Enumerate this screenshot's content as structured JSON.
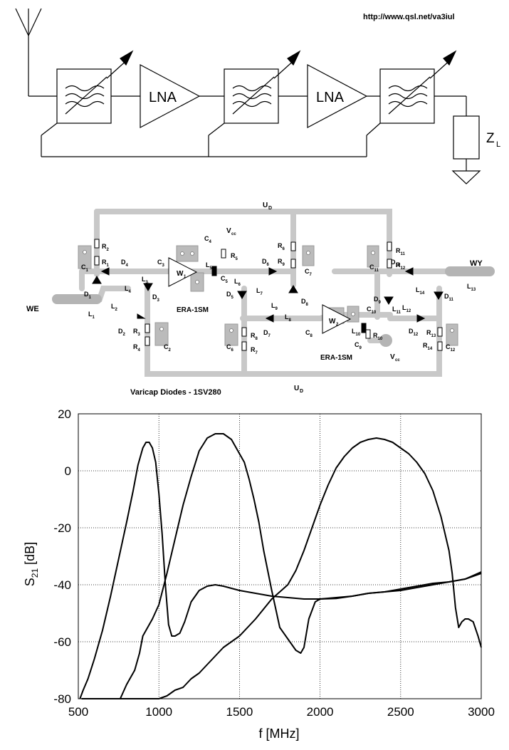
{
  "url": "http://www.qsl.net/va3iul",
  "block": {
    "lna1": "LNA",
    "lna2": "LNA",
    "load_main": "Z",
    "load_sub": "L"
  },
  "schematic": {
    "ud_top": "U",
    "ud_top_sub": "D",
    "ud_bottom": "U",
    "ud_bottom_sub": "D",
    "we": "WE",
    "wy": "WY",
    "amp1_model": "ERA-1SM",
    "amp2_model": "ERA-1SM",
    "amp1": "W",
    "amp1_sub": "1",
    "amp2": "W",
    "amp2_sub": "2",
    "vcc1": "V",
    "vcc1_sub": "cc",
    "vcc2": "V",
    "vcc2_sub": "cc",
    "varicap_note": "Varicap Diodes - 1SV280",
    "components": [
      {
        "t": "R",
        "s": "2"
      },
      {
        "t": "R",
        "s": "1"
      },
      {
        "t": "C",
        "s": "1"
      },
      {
        "t": "D",
        "s": "4"
      },
      {
        "t": "C",
        "s": "3"
      },
      {
        "t": "D",
        "s": "1"
      },
      {
        "t": "L",
        "s": "4"
      },
      {
        "t": "L",
        "s": "3"
      },
      {
        "t": "D",
        "s": "3"
      },
      {
        "t": "L",
        "s": "2"
      },
      {
        "t": "L",
        "s": "1"
      },
      {
        "t": "D",
        "s": "2"
      },
      {
        "t": "R",
        "s": "3"
      },
      {
        "t": "R",
        "s": "4"
      },
      {
        "t": "C",
        "s": "2"
      },
      {
        "t": "C",
        "s": "4"
      },
      {
        "t": "R",
        "s": "5"
      },
      {
        "t": "L",
        "s": "5"
      },
      {
        "t": "C",
        "s": "5"
      },
      {
        "t": "L",
        "s": "6"
      },
      {
        "t": "D",
        "s": "5"
      },
      {
        "t": "L",
        "s": "7"
      },
      {
        "t": "D",
        "s": "6"
      },
      {
        "t": "R",
        "s": "6"
      },
      {
        "t": "R",
        "s": "9"
      },
      {
        "t": "C",
        "s": "7"
      },
      {
        "t": "D",
        "s": "8"
      },
      {
        "t": "L",
        "s": "9"
      },
      {
        "t": "L",
        "s": "8"
      },
      {
        "t": "D",
        "s": "7"
      },
      {
        "t": "R",
        "s": "8"
      },
      {
        "t": "C",
        "s": "6"
      },
      {
        "t": "R",
        "s": "7"
      },
      {
        "t": "C",
        "s": "8"
      },
      {
        "t": "C",
        "s": "10"
      },
      {
        "t": "L",
        "s": "10"
      },
      {
        "t": "R",
        "s": "10"
      },
      {
        "t": "C",
        "s": "9"
      },
      {
        "t": "R",
        "s": "11"
      },
      {
        "t": "C",
        "s": "11"
      },
      {
        "t": "R",
        "s": "12"
      },
      {
        "t": "D",
        "s": "10"
      },
      {
        "t": "D",
        "s": "9"
      },
      {
        "t": "L",
        "s": "11"
      },
      {
        "t": "L",
        "s": "12"
      },
      {
        "t": "L",
        "s": "14"
      },
      {
        "t": "L",
        "s": "13"
      },
      {
        "t": "D",
        "s": "11"
      },
      {
        "t": "D",
        "s": "12"
      },
      {
        "t": "R",
        "s": "13"
      },
      {
        "t": "R",
        "s": "14"
      },
      {
        "t": "C",
        "s": "12"
      }
    ]
  },
  "chart_data": {
    "type": "line",
    "xlabel": "f [MHz]",
    "ylabel": "S",
    "ylabel_sub": "21",
    "ylabel_unit": " [dB]",
    "xlim": [
      500,
      3000
    ],
    "ylim": [
      -80,
      20
    ],
    "xticks": [
      500,
      1000,
      1500,
      2000,
      2500,
      3000
    ],
    "yticks": [
      20,
      0,
      -20,
      -40,
      -60,
      -80
    ],
    "grid": true,
    "series": [
      {
        "x": [
          510,
          530,
          560,
          600,
          650,
          700,
          750,
          800,
          840,
          870,
          900,
          920,
          940,
          960,
          980,
          1000,
          1020,
          1040,
          1060,
          1080,
          1100,
          1130,
          1160,
          1200,
          1250,
          1300,
          1350,
          1400,
          1500,
          1600,
          1700,
          1800,
          1900,
          2000,
          2100,
          2200,
          2300,
          2400,
          2500,
          2600,
          2700,
          2800,
          2900,
          3000
        ],
        "y": [
          -80,
          -77,
          -73,
          -66,
          -56,
          -44,
          -31,
          -18,
          -7,
          2,
          8,
          10,
          10,
          8,
          3,
          -8,
          -22,
          -40,
          -54,
          -58,
          -58,
          -57,
          -53,
          -46,
          -42,
          -40.5,
          -40,
          -40.5,
          -42,
          -43,
          -44,
          -44.5,
          -45,
          -45,
          -44.8,
          -44,
          -43,
          -42.5,
          -41.5,
          -40.5,
          -39.5,
          -39,
          -38,
          -36
        ]
      },
      {
        "x": [
          520,
          600,
          700,
          760,
          800,
          850,
          880,
          900,
          960,
          1000,
          1050,
          1100,
          1150,
          1200,
          1250,
          1300,
          1350,
          1400,
          1450,
          1500,
          1530,
          1560,
          1590,
          1620,
          1650,
          1700,
          1750,
          1800,
          1850,
          1880,
          1900,
          1930,
          1970,
          2000,
          2100,
          2200,
          2300,
          2400,
          2500,
          2600,
          2700,
          2800,
          2900,
          3000
        ],
        "y": [
          -80,
          -80,
          -80,
          -80,
          -75,
          -70,
          -64,
          -58,
          -52,
          -47,
          -36,
          -24,
          -12,
          -2,
          7,
          11.5,
          13,
          13,
          11,
          6,
          3,
          -3,
          -10,
          -18,
          -28,
          -42,
          -55,
          -59,
          -63,
          -64,
          -62,
          -52,
          -46,
          -45,
          -44.5,
          -44,
          -43,
          -42.5,
          -42,
          -41,
          -40,
          -39,
          -38,
          -35.5
        ]
      },
      {
        "x": [
          520,
          800,
          900,
          1000,
          1050,
          1100,
          1150,
          1200,
          1250,
          1300,
          1400,
          1500,
          1600,
          1700,
          1800,
          1850,
          1900,
          1950,
          2000,
          2050,
          2100,
          2150,
          2200,
          2250,
          2300,
          2350,
          2400,
          2450,
          2500,
          2550,
          2600,
          2650,
          2700,
          2750,
          2800,
          2820,
          2840,
          2860,
          2880,
          2900,
          2920,
          2950,
          2980,
          3000
        ],
        "y": [
          -80,
          -80,
          -80,
          -80,
          -79,
          -77,
          -76,
          -73,
          -71,
          -68,
          -62,
          -58,
          -52,
          -45,
          -40,
          -35,
          -28,
          -20,
          -12,
          -5,
          1,
          5,
          8,
          10,
          11,
          11.5,
          11,
          10,
          8,
          6,
          3,
          -1,
          -7,
          -16,
          -28,
          -36,
          -48,
          -55,
          -53,
          -52,
          -52,
          -53,
          -58,
          -62
        ]
      }
    ]
  }
}
